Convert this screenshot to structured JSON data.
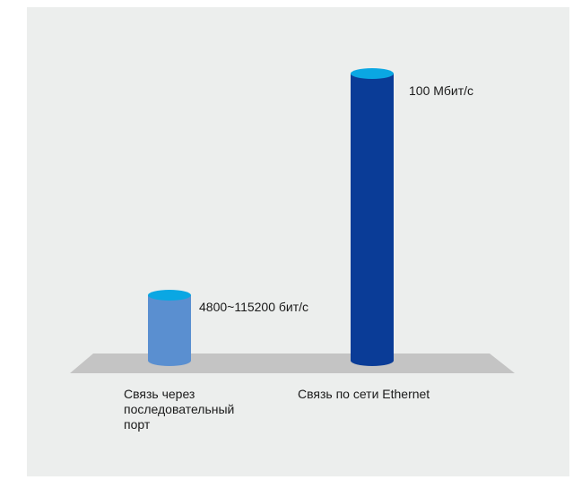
{
  "chart_data": {
    "type": "bar",
    "title": "",
    "xlabel": "",
    "ylabel": "",
    "categories": [
      "Связь через\nпоследовательный\nпорт",
      "Связь по сети Ethernet"
    ],
    "values": [
      0.1152,
      100
    ],
    "value_labels": [
      "4800~115200 бит/с",
      "100 Мбит/с"
    ],
    "unit": "Мбит/с",
    "colors": {
      "bar_serial_body": "#5a8fd0",
      "bar_serial_top": "#0aa7e3",
      "bar_ethernet_body": "#0a3c97",
      "bar_ethernet_top": "#0aa7e3",
      "floor": "#c4c4c4",
      "background": "#eceeed"
    }
  }
}
